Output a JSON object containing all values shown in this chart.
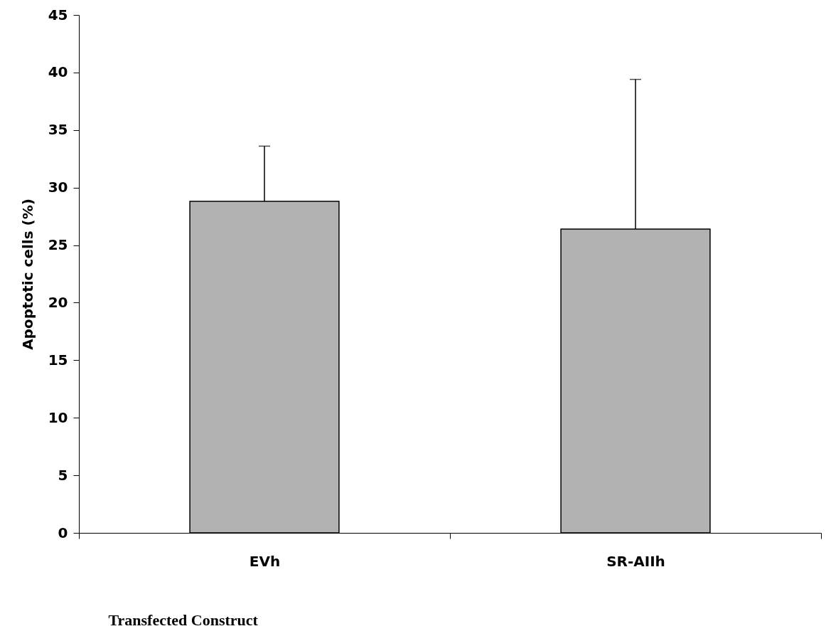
{
  "chart_data": {
    "type": "bar",
    "xlabel": "Transfected Construct",
    "ylabel": "Apoptotic cells (%)",
    "categories": [
      "EVh",
      "SR-AIIh"
    ],
    "series": [
      {
        "color": "#b2b2b2",
        "values": [
          28.8,
          26.4
        ],
        "errors": [
          [
            28.8,
            33.6
          ],
          [
            26.4,
            39.4
          ]
        ]
      }
    ],
    "ylim": [
      0,
      45
    ],
    "yticks": [
      0,
      5,
      10,
      15,
      20,
      25,
      30,
      35,
      40,
      45
    ],
    "grid": false
  }
}
